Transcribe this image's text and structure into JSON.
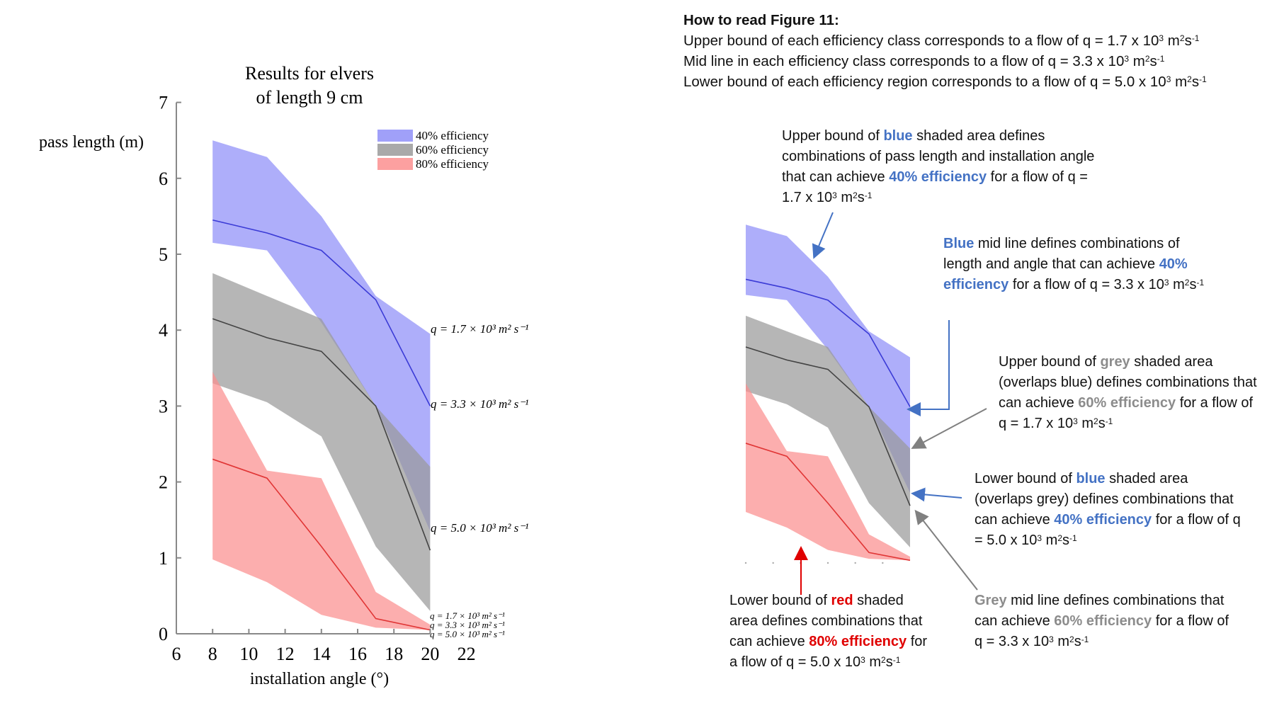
{
  "chart_data": {
    "type": "area",
    "title": "Results for elvers of length 9 cm",
    "title_lines": [
      "Results for elvers",
      "of length 9 cm"
    ],
    "xlabel": "installation angle (°)",
    "ylabel": "pass length (m)",
    "xlim": [
      6,
      22
    ],
    "ylim": [
      0,
      7
    ],
    "xticks": [
      6,
      8,
      10,
      12,
      14,
      16,
      18,
      20,
      22
    ],
    "yticks": [
      0,
      1,
      2,
      3,
      4,
      5,
      6,
      7
    ],
    "grid": false,
    "legend_position": "top-right",
    "x": [
      8,
      11,
      14,
      17,
      20
    ],
    "series": [
      {
        "name": "40% efficiency",
        "color": "#8f8ff8",
        "upper": [
          6.5,
          6.28,
          5.5,
          4.45,
          3.95
        ],
        "mid": [
          5.45,
          5.28,
          5.05,
          4.4,
          3.0
        ],
        "lower": [
          5.15,
          5.05,
          4.1,
          3.0,
          1.35
        ],
        "line_color": "#3b3bd6"
      },
      {
        "name": "60% efficiency",
        "color": "#9a9a9a",
        "upper": [
          4.75,
          4.45,
          4.15,
          3.0,
          2.2
        ],
        "mid": [
          4.15,
          3.9,
          3.72,
          3.0,
          1.1
        ],
        "lower": [
          3.3,
          3.05,
          2.6,
          1.15,
          0.3
        ],
        "line_color": "#444444"
      },
      {
        "name": "80% efficiency",
        "color": "#fb8f8f",
        "upper": [
          3.45,
          2.15,
          2.05,
          0.55,
          0.12
        ],
        "mid": [
          2.3,
          2.05,
          1.15,
          0.2,
          0.05
        ],
        "lower": [
          0.98,
          0.68,
          0.25,
          0.08,
          0.05
        ],
        "line_color": "#e03535"
      }
    ],
    "annotations": {
      "blue": [
        "q = 1.7 × 10³ m² s⁻¹",
        "q = 3.3 × 10³ m² s⁻¹",
        "q = 5.0 × 10³ m² s⁻¹"
      ],
      "red": [
        "q = 1.7 × 10³ m² s⁻¹",
        "q = 3.3 × 10³ m² s⁻¹",
        "q = 5.0 × 10³ m² s⁻¹"
      ]
    }
  },
  "howto": {
    "title": "How to read Figure 11:",
    "lines": [
      {
        "text": "Upper bound of each efficiency class corresponds to a flow  of q = 1.7 x 10",
        "tail": "m",
        "tail2": "s",
        "sup1": "3",
        "sup2": "2",
        "sup3": "-1"
      },
      {
        "text": "Mid line in each efficiency class corresponds to a flow  of q = 3.3 x 10",
        "tail": "m",
        "tail2": "s",
        "sup1": "3",
        "sup2": "2",
        "sup3": "-1"
      },
      {
        "text": "Lower bound of each efficiency region corresponds to a flow  of q = 5.0 x 10",
        "tail": "m",
        "tail2": "s",
        "sup1": "3",
        "sup2": "2",
        "sup3": "-1"
      }
    ]
  },
  "notes": {
    "blue_upper": {
      "a": "Upper bound of ",
      "hl": "blue",
      "b": " shaded area defines combinations of pass length and installation angle that can achieve ",
      "hl2": "40% efficiency",
      "c": " for a flow  of q = 1.7 x 10"
    },
    "blue_mid": {
      "hl": "Blue",
      "a": " mid line defines combinations of length and angle that can achieve ",
      "hl2": "40% efficiency",
      "b": " for a flow of q = 3.3 x 10"
    },
    "grey_upper": {
      "a": "Upper bound of ",
      "hl": "grey",
      "b": " shaded area (overlaps blue) defines combinations that can achieve ",
      "hl2": "60% efficiency",
      "c": " for a flow of q = 1.7 x 10"
    },
    "blue_lower": {
      "a": "Lower bound of ",
      "hl": "blue",
      "b": " shaded area (overlaps grey) defines combinations that can achieve ",
      "hl2": "40% efficiency",
      "c": " for a flow of q = 5.0 x 10"
    },
    "grey_mid": {
      "hl": "Grey",
      "a": " mid line defines combinations that can achieve ",
      "hl2": "60% efficiency",
      "b": " for a flow of q = 3.3 x 10"
    },
    "red_lower": {
      "a": "Lower bound of ",
      "hl": "red",
      "b": " shaded area defines combinations that can achieve ",
      "hl2": "80% efficiency",
      "c": " for a flow of q = 5.0 x 10"
    },
    "unit_m": "m",
    "unit_s": "s",
    "sup3": "3",
    "sup2": "2",
    "supm1": "-1"
  },
  "colors": {
    "blue_text": "#4472c4",
    "grey_text": "#8c8c8c",
    "red_text": "#e00000",
    "blue_arrow": "#4472c4",
    "grey_arrow": "#808080",
    "red_arrow": "#e00000"
  }
}
